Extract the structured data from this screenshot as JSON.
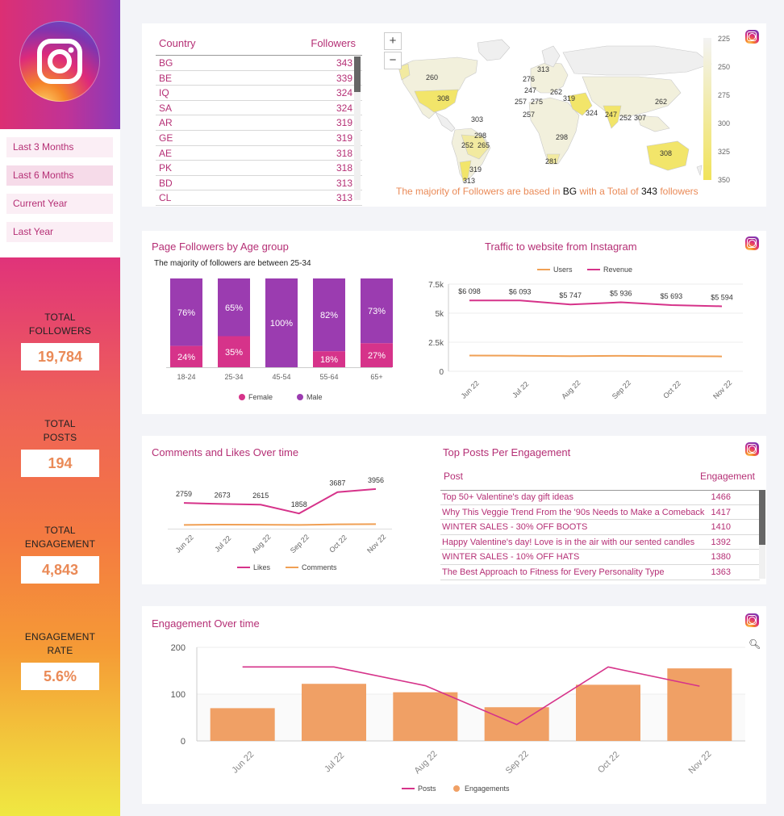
{
  "sidebar": {
    "periods": [
      "Last 3 Months",
      "Last 6 Months",
      "Current Year",
      "Last Year"
    ],
    "selected_period": "Last 6 Months",
    "kpis": [
      {
        "label_line1": "TOTAL",
        "label_line2": "FOLLOWERS",
        "value": "19,784"
      },
      {
        "label_line1": "TOTAL",
        "label_line2": "POSTS",
        "value": "194"
      },
      {
        "label_line1": "TOTAL",
        "label_line2": "ENGAGEMENT",
        "value": "4,843"
      },
      {
        "label_line1": "ENGAGEMENT",
        "label_line2": "RATE",
        "value": "5.6%"
      }
    ]
  },
  "country_table": {
    "header_country": "Country",
    "header_followers": "Followers",
    "rows": [
      {
        "country": "BG",
        "followers": "343"
      },
      {
        "country": "BE",
        "followers": "339"
      },
      {
        "country": "IQ",
        "followers": "324"
      },
      {
        "country": "SA",
        "followers": "324"
      },
      {
        "country": "AR",
        "followers": "319"
      },
      {
        "country": "GE",
        "followers": "319"
      },
      {
        "country": "AE",
        "followers": "318"
      },
      {
        "country": "PK",
        "followers": "318"
      },
      {
        "country": "BD",
        "followers": "313"
      },
      {
        "country": "CL",
        "followers": "313"
      }
    ]
  },
  "map": {
    "zoom_in": "+",
    "zoom_out": "−",
    "legend_ticks": [
      "225",
      "250",
      "275",
      "300",
      "325",
      "350"
    ],
    "labels": [
      "260",
      "308",
      "313",
      "276",
      "247",
      "262",
      "275",
      "257",
      "319",
      "324",
      "247",
      "252",
      "307",
      "262",
      "257",
      "303",
      "298",
      "298",
      "265",
      "252",
      "308",
      "281",
      "319",
      "313"
    ],
    "caption_prefix": "The majority of Followers are based in",
    "caption_country": "BG",
    "caption_mid": "with a Total of",
    "caption_value": "343",
    "caption_suffix": "followers",
    "colors": {
      "low": "#f2f2f2",
      "high": "#f2e56a"
    }
  },
  "age_chart": {
    "title": "Page Followers by Age group",
    "subtitle": "The majority of followers are between 25-34",
    "legend_female": "Female",
    "legend_male": "Male",
    "colors": {
      "female": "#d6338a",
      "male": "#9b3cb0"
    }
  },
  "traffic_chart": {
    "title": "Traffic to website from Instagram",
    "legend_users": "Users",
    "legend_revenue": "Revenue",
    "colors": {
      "users": "#f0a055",
      "revenue": "#d6338a"
    }
  },
  "comments_chart": {
    "title": "Comments and Likes Over time",
    "legend_likes": "Likes",
    "legend_comments": "Comments"
  },
  "top_posts": {
    "title": "Top Posts Per Engagement",
    "header_post": "Post",
    "header_engagement": "Engagement",
    "rows": [
      {
        "post": "Top 50+ Valentine's day gift ideas",
        "engagement": "1466"
      },
      {
        "post": "Why This Veggie Trend From the '90s Needs to Make a Comeback",
        "engagement": "1417"
      },
      {
        "post": "WINTER SALES - 30% OFF BOOTS",
        "engagement": "1410"
      },
      {
        "post": "Happy Valentine's day! Love is in the air with our sented candles",
        "engagement": "1392"
      },
      {
        "post": "WINTER SALES - 10% OFF HATS",
        "engagement": "1380"
      },
      {
        "post": "The Best Approach to Fitness for Every Personality Type",
        "engagement": "1363"
      }
    ]
  },
  "engagement_chart": {
    "title": "Engagement Over time",
    "legend_posts": "Posts",
    "legend_engagements": "Engagements",
    "colors": {
      "bars": "#f0a065",
      "line": "#d6338a"
    }
  },
  "chart_data": [
    {
      "type": "bar",
      "title": "Page Followers by Age group",
      "categories": [
        "18-24",
        "25-34",
        "45-54",
        "55-64",
        "65+"
      ],
      "series": [
        {
          "name": "Female",
          "values": [
            24,
            35,
            0,
            18,
            27
          ]
        },
        {
          "name": "Male",
          "values": [
            76,
            65,
            100,
            82,
            73
          ]
        }
      ],
      "stacked": true,
      "unit": "%"
    },
    {
      "type": "line",
      "title": "Traffic to website from Instagram",
      "categories": [
        "Jun 22",
        "Jul 22",
        "Aug 22",
        "Sep 22",
        "Oct 22",
        "Nov 22"
      ],
      "series": [
        {
          "name": "Users",
          "values": [
            1350,
            1340,
            1300,
            1330,
            1300,
            1280
          ]
        },
        {
          "name": "Revenue",
          "values": [
            6098,
            6093,
            5747,
            5936,
            5693,
            5594
          ],
          "labels": [
            "$6 098",
            "$6 093",
            "$5 747",
            "$5 936",
            "$5 693",
            "$5 594"
          ]
        }
      ],
      "yticks": [
        "0",
        "2.5k",
        "5k",
        "7.5k"
      ],
      "ylim": [
        0,
        7500
      ]
    },
    {
      "type": "line",
      "title": "Comments and Likes Over time",
      "categories": [
        "Jun 22",
        "Jul 22",
        "Aug 22",
        "Sep 22",
        "Oct 22",
        "Nov 22"
      ],
      "series": [
        {
          "name": "Likes",
          "values": [
            2759,
            2673,
            2615,
            1858,
            3687,
            3956
          ]
        },
        {
          "name": "Comments",
          "values": [
            120,
            130,
            125,
            118,
            140,
            150
          ]
        }
      ],
      "ylim": [
        0,
        4500
      ]
    },
    {
      "type": "bar",
      "title": "Engagement Over time",
      "categories": [
        "Jun 22",
        "Jul 22",
        "Aug 22",
        "Sep 22",
        "Oct 22",
        "Nov 22"
      ],
      "series": [
        {
          "name": "Engagements",
          "values": [
            70,
            122,
            104,
            72,
            120,
            155
          ]
        },
        {
          "name": "Posts",
          "values": [
            158,
            158,
            118,
            35,
            158,
            117
          ]
        }
      ],
      "yticks": [
        "0",
        "100",
        "200"
      ],
      "ylim": [
        0,
        200
      ]
    }
  ]
}
